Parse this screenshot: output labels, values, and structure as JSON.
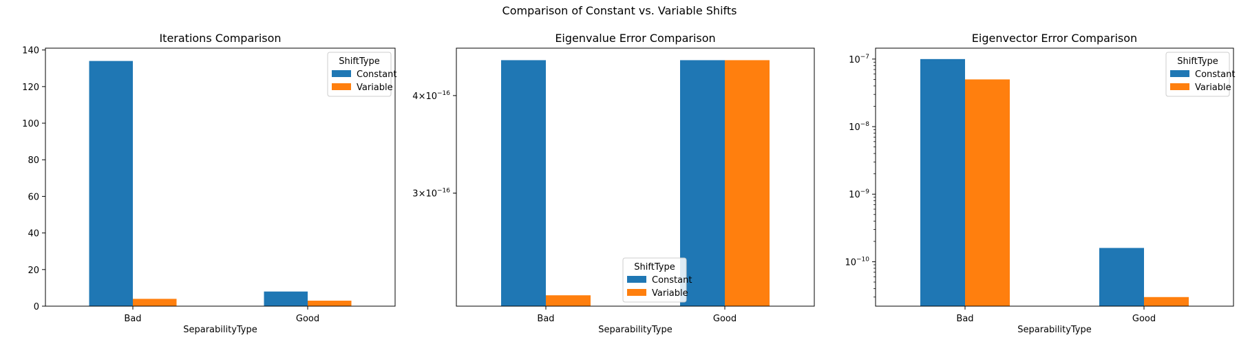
{
  "suptitle": "Comparison of Constant vs. Variable Shifts",
  "colors": {
    "Constant": "#1f77b4",
    "Variable": "#ff7f0e"
  },
  "chart_data": [
    {
      "type": "bar",
      "title": "Iterations Comparison",
      "xlabel": "SeparabilityType",
      "ylabel": "",
      "categories": [
        "Bad",
        "Good"
      ],
      "series": [
        {
          "name": "Constant",
          "values": [
            134,
            8
          ]
        },
        {
          "name": "Variable",
          "values": [
            4,
            3
          ]
        }
      ],
      "yscale": "linear",
      "ylim": [
        0,
        141
      ],
      "yticks": [
        0,
        20,
        40,
        60,
        80,
        100,
        120,
        140
      ],
      "ytick_labels": [
        "0",
        "20",
        "40",
        "60",
        "80",
        "100",
        "120",
        "140"
      ],
      "legend_title": "ShiftType",
      "legend_position": "top-right"
    },
    {
      "type": "bar",
      "title": "Eigenvalue Error Comparison",
      "xlabel": "SeparabilityType",
      "ylabel": "",
      "categories": [
        "Bad",
        "Good"
      ],
      "series": [
        {
          "name": "Constant",
          "values": [
            4.44e-16,
            4.44e-16
          ]
        },
        {
          "name": "Variable",
          "values": [
            2.22e-16,
            4.44e-16
          ]
        }
      ],
      "yscale": "log",
      "ylim": [
        2.15e-16,
        4.6e-16
      ],
      "yticks": [
        3e-16,
        4e-16
      ],
      "ytick_labels": [
        {
          "mantissa": "3",
          "exponent": "−16"
        },
        {
          "mantissa": "4",
          "exponent": "−16"
        }
      ],
      "legend_title": "ShiftType",
      "legend_position": "bottom-center"
    },
    {
      "type": "bar",
      "title": "Eigenvector Error Comparison",
      "xlabel": "SeparabilityType",
      "ylabel": "",
      "categories": [
        "Bad",
        "Good"
      ],
      "series": [
        {
          "name": "Constant",
          "values": [
            1e-07,
            1.6e-10
          ]
        },
        {
          "name": "Variable",
          "values": [
            5e-08,
            3e-11
          ]
        }
      ],
      "yscale": "log",
      "ylim": [
        2.2e-11,
        1.45e-07
      ],
      "yticks": [
        1e-10,
        1e-09,
        1e-08,
        1e-07
      ],
      "ytick_labels": [
        {
          "mantissa": "10",
          "exponent": "−10"
        },
        {
          "mantissa": "10",
          "exponent": "−9"
        },
        {
          "mantissa": "10",
          "exponent": "−8"
        },
        {
          "mantissa": "10",
          "exponent": "−7"
        }
      ],
      "legend_title": "ShiftType",
      "legend_position": "top-right"
    }
  ]
}
